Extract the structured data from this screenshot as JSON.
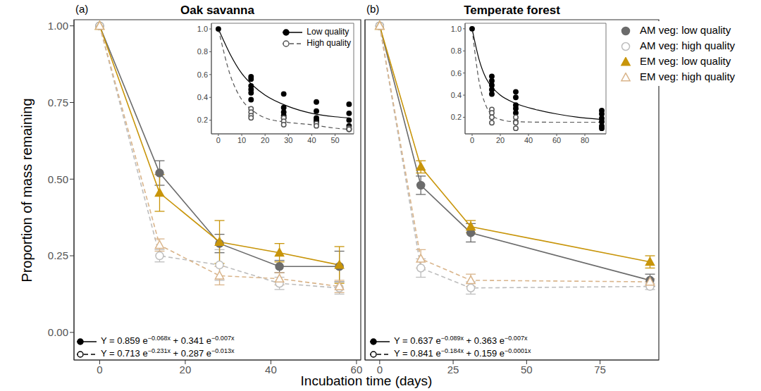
{
  "figure": {
    "xlabel": "Incubation time (days)",
    "ylabel": "Proportion of mass remaining"
  },
  "chart_data": [
    {
      "type": "line",
      "label": "(a)",
      "title": "Oak savanna",
      "xlim": [
        -6,
        61
      ],
      "xticks": [
        0,
        20,
        40,
        60
      ],
      "ylim": [
        -0.09,
        1.02
      ],
      "yticks": [
        {
          "value": 0,
          "label": "0.00"
        },
        0.25,
        {
          "value": 0.5,
          "label": "0.50"
        },
        0.75,
        {
          "value": 1,
          "label": "1.00"
        }
      ],
      "x": [
        0,
        14,
        28,
        42,
        56
      ],
      "series": [
        {
          "name": "AM veg: low quality",
          "color": "#6b6b6b",
          "marker": "circle",
          "line_style": "solid",
          "values": [
            1.0,
            0.52,
            0.29,
            0.215,
            0.215
          ],
          "error": [
            0,
            0.04,
            0.03,
            0.02,
            0.05
          ]
        },
        {
          "name": "AM veg: high quality",
          "color": "#bdbdbd",
          "marker": "circle_open",
          "line_style": "dashed",
          "values": [
            1.0,
            0.25,
            0.22,
            0.16,
            0.145
          ],
          "error": [
            0,
            0.02,
            0.05,
            0.02,
            0.02
          ]
        },
        {
          "name": "EM veg: low quality",
          "color": "#c8950a",
          "marker": "triangle",
          "line_style": "solid",
          "values": [
            1.0,
            0.455,
            0.295,
            0.26,
            0.22
          ],
          "error": [
            0,
            0.06,
            0.07,
            0.03,
            0.06
          ]
        },
        {
          "name": "EM veg: high quality",
          "color": "#d9b48a",
          "marker": "triangle_open",
          "line_style": "dashed",
          "values": [
            1.0,
            0.285,
            0.185,
            0.175,
            0.15
          ],
          "error": [
            0,
            0.02,
            0.03,
            0.02,
            0.02
          ]
        }
      ],
      "inset": {
        "type": "scatter",
        "legend": "top right",
        "xlim": [
          -3,
          58
        ],
        "xticks": [
          0,
          10,
          20,
          30,
          40,
          50
        ],
        "ylim": [
          0.08,
          1.05
        ],
        "yticks": [
          0.2,
          0.4,
          0.6,
          0.8,
          {
            "value": 1,
            "label": "1.0"
          }
        ],
        "series": [
          {
            "name": "Low quality",
            "color": "#000000",
            "marker": "circle",
            "line_style": "solid",
            "points": {
              "x": [
                0,
                14,
                14,
                14,
                14,
                14,
                14,
                28,
                28,
                28,
                28,
                28,
                42,
                42,
                42,
                42,
                42,
                56,
                56,
                56,
                56,
                56
              ],
              "y": [
                1.0,
                0.58,
                0.56,
                0.5,
                0.47,
                0.44,
                0.38,
                0.43,
                0.31,
                0.27,
                0.24,
                0.22,
                0.36,
                0.28,
                0.22,
                0.2,
                0.18,
                0.34,
                0.26,
                0.2,
                0.15,
                0.12
              ]
            },
            "fit": {
              "x": [
                0,
                5,
                10,
                15,
                20,
                30,
                40,
                50,
                56
              ],
              "y": [
                1.0,
                0.78,
                0.61,
                0.5,
                0.42,
                0.32,
                0.26,
                0.23,
                0.22
              ]
            }
          },
          {
            "name": "High quality",
            "color": "#555555",
            "marker": "circle_open",
            "line_style": "dashed",
            "points": {
              "x": [
                14,
                14,
                14,
                14,
                28,
                28,
                28,
                42,
                42,
                56,
                56
              ],
              "y": [
                0.3,
                0.27,
                0.24,
                0.22,
                0.22,
                0.19,
                0.16,
                0.17,
                0.15,
                0.13,
                0.12
              ]
            },
            "fit": {
              "x": [
                0,
                5,
                10,
                15,
                20,
                30,
                40,
                50,
                56
              ],
              "y": [
                1.0,
                0.6,
                0.38,
                0.28,
                0.22,
                0.18,
                0.16,
                0.13,
                0.12
              ]
            }
          }
        ]
      },
      "equations": [
        {
          "marker": "circle",
          "line_style": "solid",
          "segments": [
            {
              "text": "Y =  0.859 e"
            },
            {
              "sup": "−0.068x"
            },
            {
              "text": " + 0.341 e"
            },
            {
              "sup": "−0.007x"
            }
          ]
        },
        {
          "marker": "circle_open",
          "line_style": "dashed",
          "segments": [
            {
              "text": "Y =  0.713 e"
            },
            {
              "sup": "−0.231x"
            },
            {
              "text": " + 0.287 e"
            },
            {
              "sup": "−0.013x"
            }
          ]
        }
      ]
    },
    {
      "type": "line",
      "label": "(b)",
      "title": "Temperate forest",
      "tick_labels": "x",
      "legend": "top right",
      "xlim": [
        -5,
        95
      ],
      "xticks": [
        0,
        25,
        50,
        75
      ],
      "ylim": [
        -0.09,
        1.02
      ],
      "yticks": [
        {
          "value": 0,
          "label": "0.00"
        },
        0.25,
        {
          "value": 0.5,
          "label": "0.50"
        },
        0.75,
        {
          "value": 1,
          "label": "1.00"
        }
      ],
      "x": [
        0,
        14,
        31,
        92
      ],
      "series": [
        {
          "name": "AM veg: low quality",
          "color": "#6b6b6b",
          "marker": "circle",
          "line_style": "solid",
          "values": [
            1.0,
            0.48,
            0.325,
            0.17
          ],
          "error": [
            0,
            0.03,
            0.03,
            0.02
          ]
        },
        {
          "name": "AM veg: high quality",
          "color": "#bdbdbd",
          "marker": "circle_open",
          "line_style": "dashed",
          "values": [
            1.0,
            0.21,
            0.145,
            0.15
          ],
          "error": [
            0,
            0.03,
            0.02,
            0.01
          ]
        },
        {
          "name": "EM veg: low quality",
          "color": "#c8950a",
          "marker": "triangle",
          "line_style": "solid",
          "values": [
            1.0,
            0.54,
            0.345,
            0.23
          ],
          "error": [
            0,
            0.02,
            0.02,
            0.02
          ]
        },
        {
          "name": "EM veg: high quality",
          "color": "#d9b48a",
          "marker": "triangle_open",
          "line_style": "dashed",
          "values": [
            1.0,
            0.24,
            0.17,
            0.165
          ],
          "error": [
            0,
            0.03,
            0.02,
            0.01
          ]
        }
      ],
      "inset": {
        "type": "scatter",
        "xlim": [
          -5,
          95
        ],
        "xticks": [
          0,
          20,
          40,
          60,
          80
        ],
        "ylim": [
          0.05,
          1.05
        ],
        "yticks": [
          0.2,
          0.4,
          0.6,
          0.8,
          {
            "value": 1,
            "label": "1.0"
          }
        ],
        "series": [
          {
            "name": "Low quality",
            "color": "#000000",
            "marker": "circle",
            "line_style": "solid",
            "points": {
              "x": [
                0,
                14,
                14,
                14,
                14,
                14,
                31,
                31,
                31,
                31,
                31,
                92,
                92,
                92,
                92,
                92,
                92
              ],
              "y": [
                1.0,
                0.57,
                0.53,
                0.49,
                0.45,
                0.41,
                0.43,
                0.38,
                0.31,
                0.28,
                0.24,
                0.26,
                0.23,
                0.19,
                0.16,
                0.12,
                0.1
              ]
            },
            "fit": {
              "x": [
                0,
                5,
                10,
                15,
                20,
                30,
                45,
                60,
                75,
                92
              ],
              "y": [
                1.0,
                0.72,
                0.55,
                0.46,
                0.4,
                0.33,
                0.27,
                0.23,
                0.2,
                0.18
              ]
            }
          },
          {
            "name": "High quality",
            "color": "#555555",
            "marker": "circle_open",
            "line_style": "dashed",
            "points": {
              "x": [
                14,
                14,
                14,
                14,
                31,
                31,
                31,
                31
              ],
              "y": [
                0.27,
                0.24,
                0.2,
                0.15,
                0.2,
                0.16,
                0.15,
                0.1
              ]
            },
            "fit": {
              "x": [
                0,
                5,
                10,
                15,
                20,
                30,
                60,
                92
              ],
              "y": [
                1.0,
                0.52,
                0.3,
                0.21,
                0.18,
                0.16,
                0.155,
                0.155
              ]
            }
          }
        ]
      },
      "equations": [
        {
          "marker": "circle",
          "line_style": "solid",
          "segments": [
            {
              "text": "Y =  0.637 e"
            },
            {
              "sup": "−0.089x"
            },
            {
              "text": " + 0.363 e"
            },
            {
              "sup": "−0.007x"
            }
          ]
        },
        {
          "marker": "circle_open",
          "line_style": "dashed",
          "segments": [
            {
              "text": "Y =  0.841 e"
            },
            {
              "sup": "−0.184x"
            },
            {
              "text": " + 0.159 e"
            },
            {
              "sup": "−0.0001x"
            }
          ]
        }
      ]
    }
  ]
}
